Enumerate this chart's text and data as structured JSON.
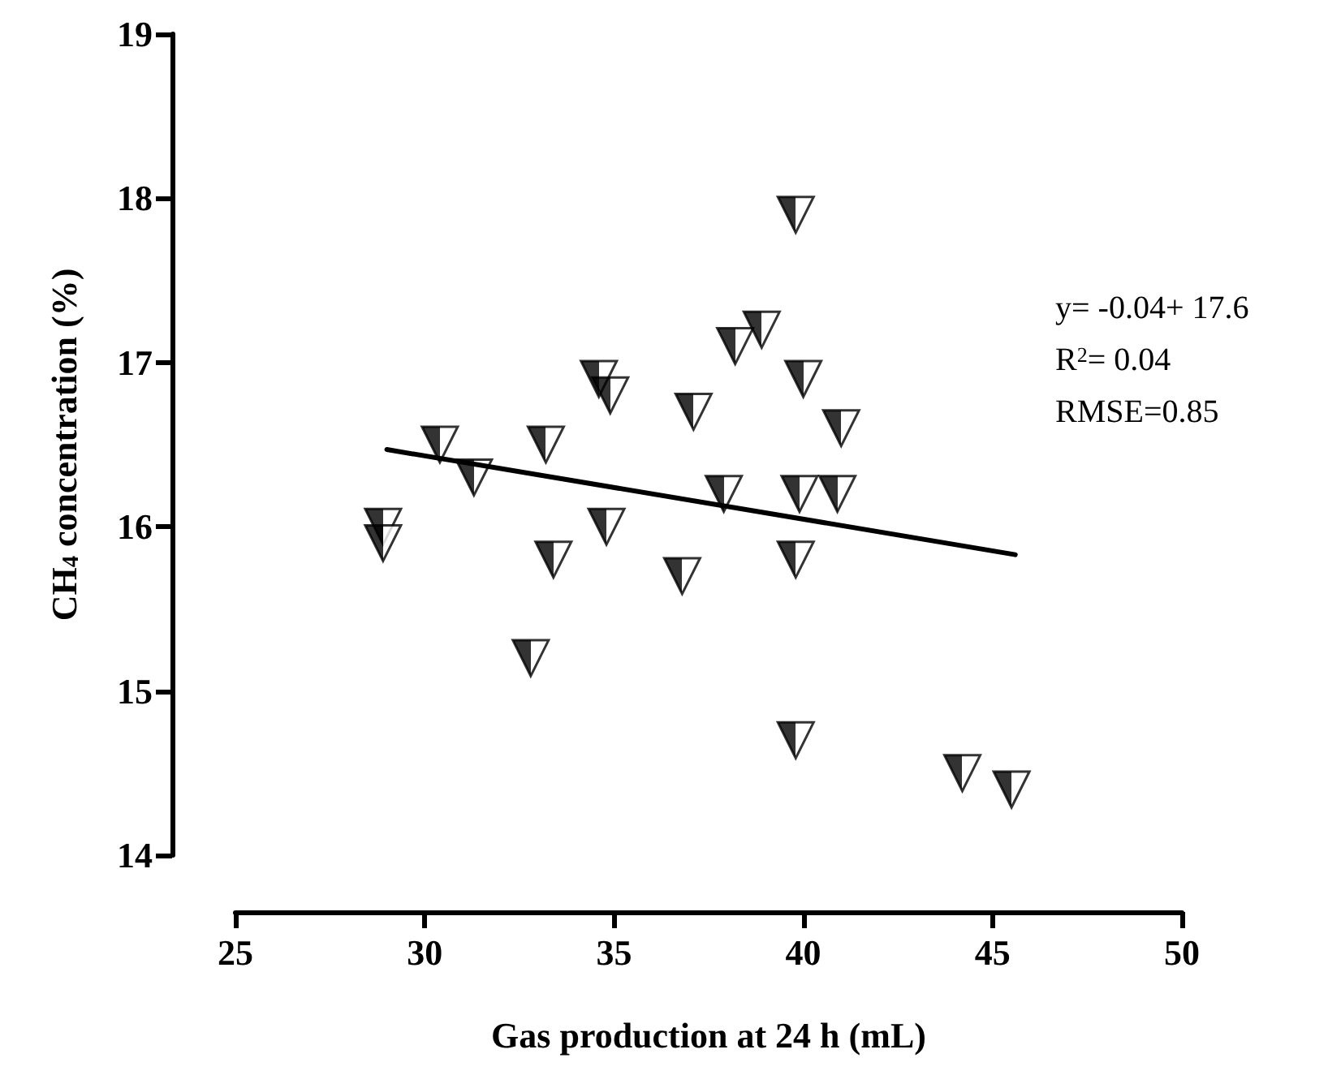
{
  "chart_data": {
    "type": "scatter",
    "xlabel": "Gas production at 24 h (mL)",
    "ylabel": "CH$_{4}$ concentration (%)",
    "xlim": [
      25,
      50
    ],
    "xticks": [
      25,
      30,
      35,
      40,
      45,
      50
    ],
    "ylim": [
      14,
      19
    ],
    "yticks": [
      14,
      15,
      16,
      17,
      18,
      19
    ],
    "grid": false,
    "marker": "triangle",
    "annotations": [
      "y= -0.04+ 17.6",
      "R$^{2}$= 0.04",
      "RMSE=0.85"
    ],
    "series": [
      {
        "color": "#000000",
        "x": [
          28.9,
          28.9,
          30.4,
          31.3,
          33.2,
          33.4,
          32.8,
          34.6,
          34.9,
          34.8,
          36.8,
          37.1,
          39.8,
          38.2,
          38.9,
          40.0,
          41.0,
          37.9,
          39.9,
          40.9,
          39.8,
          39.8,
          44.2,
          45.5
        ],
        "values": [
          16.0,
          15.9,
          16.5,
          16.3,
          16.5,
          15.8,
          15.2,
          16.9,
          16.8,
          16.0,
          15.7,
          16.7,
          17.9,
          17.1,
          17.2,
          16.9,
          16.6,
          16.2,
          16.2,
          16.2,
          15.8,
          14.7,
          14.5,
          14.4
        ]
      },
      {
        "type": "line",
        "color": "#000000",
        "marker": "none",
        "line_style": "solid",
        "x": [
          29.0,
          45.6
        ],
        "values": [
          16.47,
          15.83
        ]
      }
    ]
  }
}
